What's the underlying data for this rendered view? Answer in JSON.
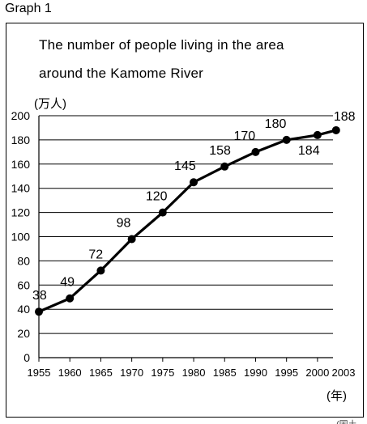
{
  "graph_label": "Graph 1",
  "cut_text": "(国土",
  "chart_data": {
    "type": "line",
    "title": "The number of people living in the area around the Kamome River",
    "title_lines": [
      "The number of people living in the area",
      "around the Kamome River"
    ],
    "ylabel": "(万人)",
    "xlabel": "(年)",
    "x": [
      1955,
      1960,
      1965,
      1970,
      1975,
      1980,
      1985,
      1990,
      1995,
      2000,
      2003
    ],
    "values": [
      38,
      49,
      72,
      98,
      120,
      145,
      158,
      170,
      180,
      184,
      188
    ],
    "ylim": [
      0,
      200
    ],
    "yticks": [
      0,
      20,
      40,
      60,
      80,
      100,
      120,
      140,
      160,
      180,
      200
    ],
    "xticks": [
      1955,
      1960,
      1965,
      1970,
      1975,
      1980,
      1985,
      1990,
      1995,
      2000,
      2003
    ],
    "grid": true,
    "line_color": "#000000"
  }
}
